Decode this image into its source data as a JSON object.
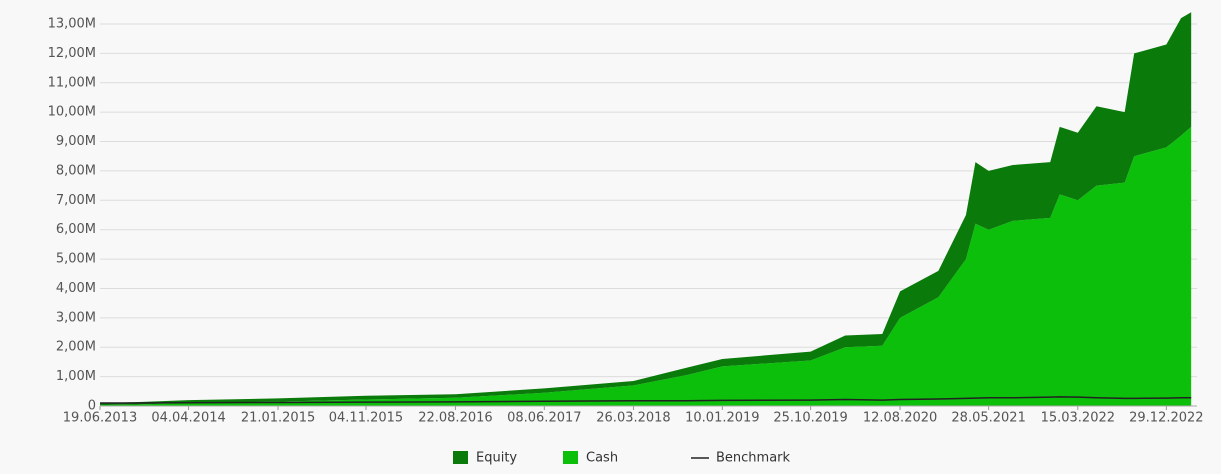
{
  "chart_data": {
    "type": "area",
    "x": [
      "19.06.2013",
      "15.10.2013",
      "04.04.2014",
      "21.01.2015",
      "04.11.2015",
      "22.08.2016",
      "08.06.2017",
      "26.03.2018",
      "15.09.2018",
      "10.01.2019",
      "25.10.2019",
      "15.02.2020",
      "15.06.2020",
      "12.08.2020",
      "15.12.2020",
      "15.03.2021",
      "15.04.2021",
      "28.05.2021",
      "15.08.2021",
      "15.12.2021",
      "15.01.2022",
      "15.03.2022",
      "15.05.2022",
      "15.08.2022",
      "15.09.2022",
      "29.12.2022",
      "15.02.2023",
      "20.03.2023"
    ],
    "series": [
      {
        "name": "Equity",
        "color": "#0a7a0a",
        "values": [
          70000,
          80000,
          100000,
          110000,
          130000,
          120000,
          150000,
          150000,
          250000,
          250000,
          300000,
          400000,
          400000,
          900000,
          900000,
          1500000,
          2100000,
          2000000,
          1900000,
          1900000,
          2300000,
          2300000,
          2700000,
          2400000,
          3500000,
          3500000,
          4000000,
          3900000
        ]
      },
      {
        "name": "Cash",
        "color": "#0bbf0b",
        "values": [
          30000,
          50000,
          100000,
          150000,
          220000,
          280000,
          450000,
          700000,
          1050000,
          1350000,
          1550000,
          2000000,
          2050000,
          3000000,
          3700000,
          5000000,
          6200000,
          6000000,
          6300000,
          6400000,
          7200000,
          7000000,
          7500000,
          7600000,
          8500000,
          8800000,
          9200000,
          9500000
        ]
      },
      {
        "name": "Benchmark",
        "color": "#222222",
        "type": "line",
        "values": [
          100000,
          100000,
          110000,
          120000,
          130000,
          140000,
          160000,
          180000,
          180000,
          190000,
          200000,
          220000,
          200000,
          220000,
          240000,
          260000,
          270000,
          280000,
          280000,
          300000,
          310000,
          300000,
          280000,
          260000,
          260000,
          270000,
          280000,
          280000
        ]
      }
    ],
    "xlim": [
      "19.06.2013",
      "08.04.2023"
    ],
    "xticks": [
      "19.06.2013",
      "04.04.2014",
      "21.01.2015",
      "04.11.2015",
      "22.08.2016",
      "08.06.2017",
      "26.03.2018",
      "10.01.2019",
      "25.10.2019",
      "12.08.2020",
      "28.05.2021",
      "15.03.2022",
      "29.12.2022"
    ],
    "ylim": [
      0,
      13500000
    ],
    "yticks": [
      0,
      {
        "value": 1000000,
        "label": "1,00M"
      },
      {
        "value": 2000000,
        "label": "2,00M"
      },
      {
        "value": 3000000,
        "label": "3,00M"
      },
      {
        "value": 4000000,
        "label": "4,00M"
      },
      {
        "value": 5000000,
        "label": "5,00M"
      },
      {
        "value": 6000000,
        "label": "6,00M"
      },
      {
        "value": 7000000,
        "label": "7,00M"
      },
      {
        "value": 8000000,
        "label": "8,00M"
      },
      {
        "value": 9000000,
        "label": "9,00M"
      },
      {
        "value": 10000000,
        "label": "10,00M"
      },
      {
        "value": 11000000,
        "label": "11,00M"
      },
      {
        "value": 12000000,
        "label": "12,00M"
      },
      {
        "value": 13000000,
        "label": "13,00M"
      }
    ],
    "grid": true,
    "legend": "bottom"
  }
}
